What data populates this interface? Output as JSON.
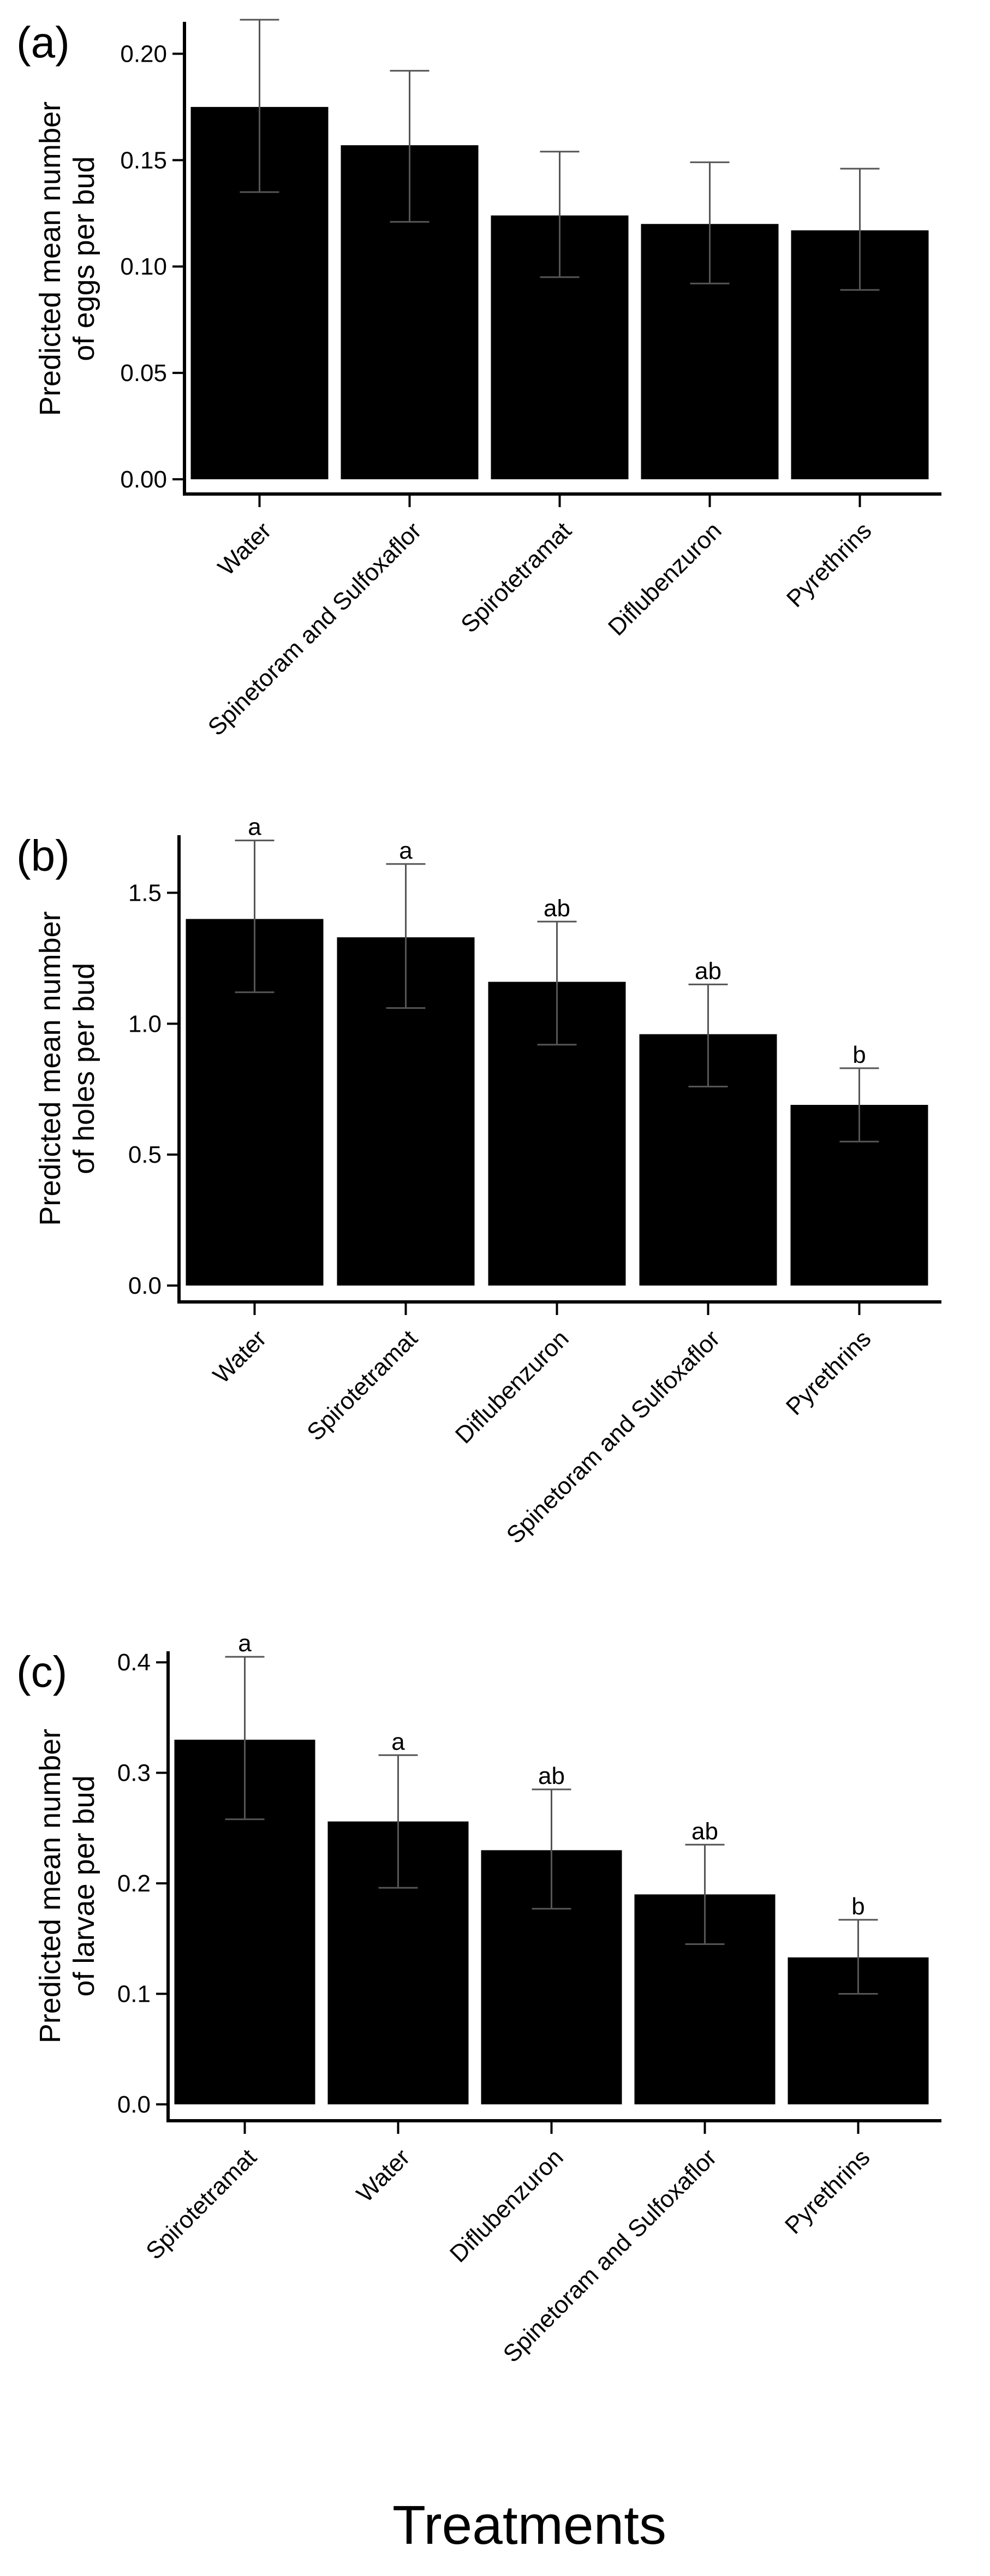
{
  "colors": {
    "bar": "#000000",
    "axis": "#000000",
    "error": "#555555",
    "background": "#ffffff"
  },
  "x_axis_title": "Treatments",
  "chart_data": [
    {
      "type": "bar",
      "panel_label": "(a)",
      "title": "",
      "xlabel": "",
      "ylabel_lines": [
        "Predicted mean number",
        "of eggs per bud"
      ],
      "ylim": [
        0,
        0.215
      ],
      "yticks": [
        0.0,
        0.05,
        0.1,
        0.15,
        0.2
      ],
      "ytick_labels": [
        "0.00",
        "0.05",
        "0.10",
        "0.15",
        "0.20"
      ],
      "categories": [
        "Water",
        "Spinetoram and Sulfoxaflor",
        "Spirotetramat",
        "Diflubenzuron",
        "Pyrethrins"
      ],
      "values": [
        0.175,
        0.157,
        0.124,
        0.12,
        0.117
      ],
      "error_low": [
        0.135,
        0.121,
        0.095,
        0.092,
        0.089
      ],
      "error_high": [
        0.216,
        0.192,
        0.154,
        0.149,
        0.146
      ],
      "letters": []
    },
    {
      "type": "bar",
      "panel_label": "(b)",
      "title": "",
      "xlabel": "",
      "ylabel_lines": [
        "Predicted mean number",
        "of holes per bud"
      ],
      "ylim": [
        0,
        1.72
      ],
      "yticks": [
        0.0,
        0.5,
        1.0,
        1.5
      ],
      "ytick_labels": [
        "0.0",
        "0.5",
        "1.0",
        "1.5"
      ],
      "categories": [
        "Water",
        "Spirotetramat",
        "Diflubenzuron",
        "Spinetoram and Sulfoxaflor",
        "Pyrethrins"
      ],
      "values": [
        1.4,
        1.33,
        1.16,
        0.96,
        0.69
      ],
      "error_low": [
        1.12,
        1.06,
        0.92,
        0.76,
        0.55
      ],
      "error_high": [
        1.7,
        1.61,
        1.39,
        1.15,
        0.83
      ],
      "letters": [
        "a",
        "a",
        "ab",
        "ab",
        "b"
      ]
    },
    {
      "type": "bar",
      "panel_label": "(c)",
      "title": "",
      "xlabel": "",
      "ylabel_lines": [
        "Predicted mean number",
        "of larvae per bud"
      ],
      "ylim": [
        0,
        0.41
      ],
      "yticks": [
        0.0,
        0.1,
        0.2,
        0.3,
        0.4
      ],
      "ytick_labels": [
        "0.0",
        "0.1",
        "0.2",
        "0.3",
        "0.4"
      ],
      "categories": [
        "Spirotetramat",
        "Water",
        "Diflubenzuron",
        "Spinetoram and Sulfoxaflor",
        "Pyrethrins"
      ],
      "values": [
        0.33,
        0.256,
        0.23,
        0.19,
        0.133
      ],
      "error_low": [
        0.258,
        0.196,
        0.177,
        0.145,
        0.1
      ],
      "error_high": [
        0.405,
        0.316,
        0.285,
        0.235,
        0.167
      ],
      "letters": [
        "a",
        "a",
        "ab",
        "ab",
        "b"
      ]
    }
  ]
}
